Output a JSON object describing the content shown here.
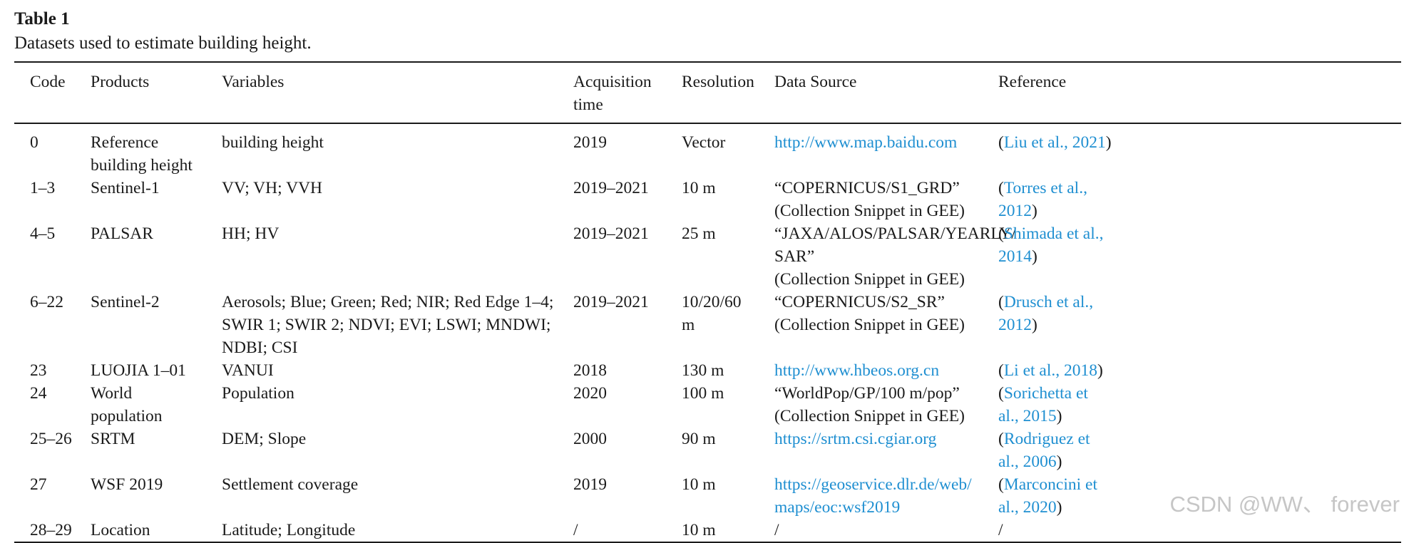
{
  "caption": {
    "label": "Table 1",
    "title": "Datasets used to estimate building height."
  },
  "table": {
    "headers": [
      "Code",
      "Products",
      "Variables",
      "Acquisition time",
      "Resolution",
      "Data Source",
      "Reference"
    ],
    "rows": [
      {
        "code": "0",
        "product": "Reference building height",
        "variables": "building height",
        "time": "2019",
        "resolution": "Vector",
        "source": "http://www.map.baidu.com",
        "source_note": "",
        "ref_open": "(",
        "ref_text": "Liu et al., 2021",
        "ref_close": ")"
      },
      {
        "code": "1–3",
        "product": "Sentinel-1",
        "variables": "VV; VH; VVH",
        "time": "2019–2021",
        "resolution": "10 m",
        "source": "“COPERNICUS/S1_GRD”",
        "source_note": "(Collection Snippet in GEE)",
        "ref_open": "(",
        "ref_text": "Torres et al., 2012",
        "ref_close": ")"
      },
      {
        "code": "4–5",
        "product": "PALSAR",
        "variables": "HH; HV",
        "time": "2019–2021",
        "resolution": "25 m",
        "source": "“JAXA/ALOS/PALSAR/YEARLY/ SAR”",
        "source_note": "(Collection Snippet in GEE)",
        "ref_open": "(",
        "ref_text": "Shimada et al., 2014",
        "ref_close": ")"
      },
      {
        "code": "6–22",
        "product": "Sentinel-2",
        "variables": "Aerosols; Blue; Green; Red; NIR; Red Edge 1–4; SWIR 1; SWIR 2; NDVI; EVI; LSWI; MNDWI; NDBI; CSI",
        "time": "2019–2021",
        "resolution": "10/20/60 m",
        "source": "“COPERNICUS/S2_SR”",
        "source_note": "(Collection Snippet in GEE)",
        "ref_open": "(",
        "ref_text": "Drusch et al., 2012",
        "ref_close": ")"
      },
      {
        "code": "23",
        "product": "LUOJIA 1–01",
        "variables": "VANUI",
        "time": "2018",
        "resolution": "130 m",
        "source": "http://www.hbeos.org.cn",
        "source_note": "",
        "ref_open": "(",
        "ref_text": "Li et al., 2018",
        "ref_close": ")"
      },
      {
        "code": "24",
        "product": "World population",
        "variables": "Population",
        "time": "2020",
        "resolution": "100 m",
        "source": "“WorldPop/GP/100 m/pop”",
        "source_note": "(Collection Snippet in GEE)",
        "ref_open": "(",
        "ref_text": "Sorichetta et al., 2015",
        "ref_close": ")"
      },
      {
        "code": "25–26",
        "product": "SRTM",
        "variables": "DEM; Slope",
        "time": "2000",
        "resolution": "90 m",
        "source": "https://srtm.csi.cgiar.org",
        "source_note": "",
        "ref_open": "(",
        "ref_text": "Rodriguez et al., 2006",
        "ref_close": ")"
      },
      {
        "code": "27",
        "product": "WSF 2019",
        "variables": "Settlement coverage",
        "time": "2019",
        "resolution": "10 m",
        "source": "https://geoservice.dlr.de/web/ maps/eoc:wsf2019",
        "source_note": "",
        "ref_open": "(",
        "ref_text": "Marconcini et al., 2020",
        "ref_close": ")"
      },
      {
        "code": "28–29",
        "product": "Location",
        "variables": "Latitude; Longitude",
        "time": "/",
        "resolution": "10 m",
        "source": "/",
        "source_note": "",
        "ref_open": "",
        "ref_text": "/",
        "ref_close": ""
      }
    ]
  },
  "watermark": "CSDN @WW、 forever",
  "colors": {
    "link": "#1f8fd1",
    "text": "#1a1a1a",
    "rule": "#1a1a1a"
  }
}
